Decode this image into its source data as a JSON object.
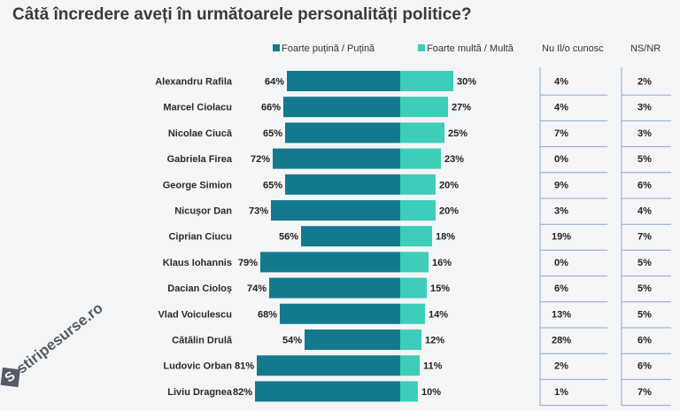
{
  "title": "Câtă încredere aveți în următoarele personalități politice?",
  "watermark": "stiripesurse.ro",
  "watermark_badge": "S",
  "colors": {
    "low": "#137a8e",
    "high": "#3ecdb8",
    "divider": "#8fa6c8"
  },
  "legend": {
    "low_label": "Foarte puțină / Puțină",
    "high_label": "Foarte multă / Multă",
    "col3_label": "Nu Il/o cunosc",
    "col4_label": "NS/NR"
  },
  "chart_data": {
    "type": "bar",
    "orientation": "horizontal-diverging",
    "categories": [
      "Alexandru Rafila",
      "Marcel Ciolacu",
      "Nicolae Ciucă",
      "Gabriela Firea",
      "George Simion",
      "Nicușor Dan",
      "Ciprian Ciucu",
      "Klaus Iohannis",
      "Dacian Cioloș",
      "Vlad Voiculescu",
      "Cătălin Drulă",
      "Ludovic Orban",
      "Liviu Dragnea"
    ],
    "series": [
      {
        "name": "Foarte puțină / Puțină",
        "values": [
          64,
          66,
          65,
          72,
          65,
          73,
          56,
          79,
          74,
          68,
          54,
          81,
          82
        ],
        "labels": [
          "64%",
          "66%",
          "65%",
          "72%",
          "65%",
          "73%",
          "56%",
          "79%",
          "74%",
          "68%",
          "54%",
          "81%",
          "82%"
        ]
      },
      {
        "name": "Foarte multă / Multă",
        "values": [
          30,
          27,
          25,
          23,
          20,
          20,
          18,
          16,
          15,
          14,
          12,
          11,
          10
        ],
        "labels": [
          "30%",
          "27%",
          "25%",
          "23%",
          "20%",
          "20%",
          "18%",
          "16%",
          "15%",
          "14%",
          "12%",
          "11%",
          "10%"
        ]
      },
      {
        "name": "Nu Il/o cunosc",
        "values": [
          4,
          4,
          7,
          0,
          9,
          3,
          19,
          0,
          6,
          13,
          28,
          2,
          1
        ],
        "labels": [
          "4%",
          "4%",
          "7%",
          "0%",
          "9%",
          "3%",
          "19%",
          "0%",
          "6%",
          "13%",
          "28%",
          "2%",
          "1%"
        ]
      },
      {
        "name": "NS/NR",
        "values": [
          2,
          3,
          3,
          5,
          6,
          4,
          7,
          5,
          5,
          5,
          6,
          6,
          7
        ],
        "labels": [
          "2%",
          "3%",
          "3%",
          "5%",
          "6%",
          "4%",
          "7%",
          "5%",
          "5%",
          "5%",
          "6%",
          "6%",
          "7%"
        ]
      }
    ],
    "legend_position": "top"
  }
}
